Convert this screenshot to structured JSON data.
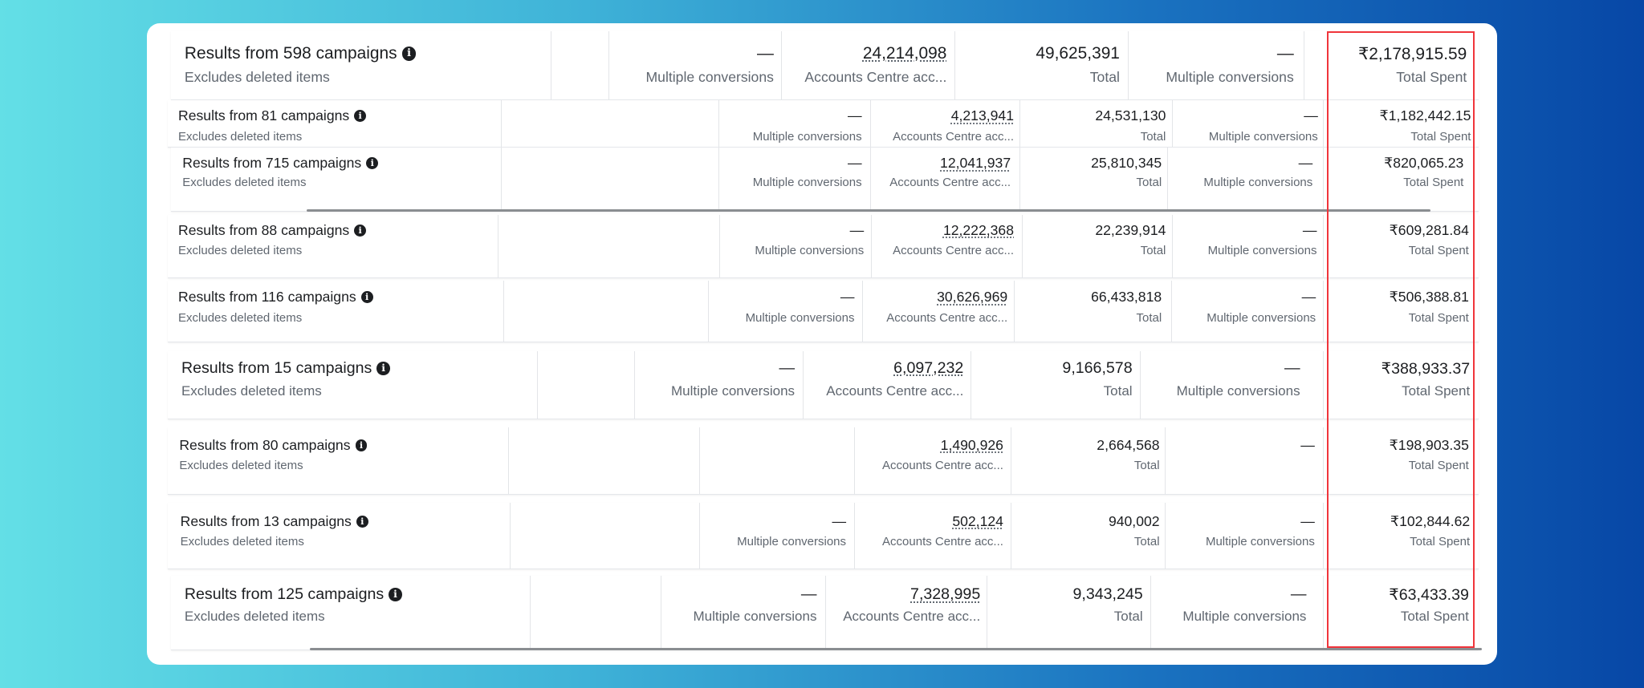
{
  "colors": {
    "highlight": "#f0353b",
    "text": "#1c1e21",
    "muted": "#606770"
  },
  "rows": [
    {
      "title": "Results from 598 campaigns",
      "note": "Excludes deleted items",
      "cells": [
        {
          "value": "—",
          "label": "Multiple conversions"
        },
        {
          "value": "24,214,098",
          "label": "Accounts Centre acc..."
        },
        {
          "value": "49,625,391",
          "label": "Total"
        },
        {
          "value": "—",
          "label": "Multiple conversions"
        },
        {
          "value": "₹2,178,915.59",
          "label": "Total Spent"
        }
      ]
    },
    {
      "title": "Results from 81 campaigns",
      "note": "Excludes deleted items",
      "cells": [
        {
          "value": "—",
          "label": "Multiple conversions"
        },
        {
          "value": "4,213,941",
          "label": "Accounts Centre acc..."
        },
        {
          "value": "24,531,130",
          "label": "Total"
        },
        {
          "value": "—",
          "label": "Multiple conversions"
        },
        {
          "value": "₹1,182,442.15",
          "label": "Total Spent"
        }
      ]
    },
    {
      "title": "Results from 715 campaigns",
      "note": "Excludes deleted items",
      "cells": [
        {
          "value": "—",
          "label": "Multiple conversions"
        },
        {
          "value": "12,041,937",
          "label": "Accounts Centre acc..."
        },
        {
          "value": "25,810,345",
          "label": "Total"
        },
        {
          "value": "—",
          "label": "Multiple conversions"
        },
        {
          "value": "₹820,065.23",
          "label": "Total Spent"
        }
      ]
    },
    {
      "title": "Results from 88 campaigns",
      "note": "Excludes deleted items",
      "cells": [
        {
          "value": "—",
          "label": "Multiple conversions"
        },
        {
          "value": "12,222,368",
          "label": "Accounts Centre acc..."
        },
        {
          "value": "22,239,914",
          "label": "Total"
        },
        {
          "value": "—",
          "label": "Multiple conversions"
        },
        {
          "value": "₹609,281.84",
          "label": "Total Spent"
        }
      ]
    },
    {
      "title": "Results from 116 campaigns",
      "note": "Excludes deleted items",
      "cells": [
        {
          "value": "—",
          "label": "Multiple conversions"
        },
        {
          "value": "30,626,969",
          "label": "Accounts Centre acc..."
        },
        {
          "value": "66,433,818",
          "label": "Total"
        },
        {
          "value": "—",
          "label": "Multiple conversions"
        },
        {
          "value": "₹506,388.81",
          "label": "Total Spent"
        }
      ]
    },
    {
      "title": "Results from 15 campaigns",
      "note": "Excludes deleted items",
      "cells": [
        {
          "value": "—",
          "label": "Multiple conversions"
        },
        {
          "value": "6,097,232",
          "label": "Accounts Centre acc..."
        },
        {
          "value": "9,166,578",
          "label": "Total"
        },
        {
          "value": "—",
          "label": "Multiple conversions"
        },
        {
          "value": "₹388,933.37",
          "label": "Total Spent"
        }
      ]
    },
    {
      "title": "Results from 80 campaigns",
      "note": "Excludes deleted items",
      "cells": [
        {
          "value": "",
          "label": ""
        },
        {
          "value": "1,490,926",
          "label": "Accounts Centre acc..."
        },
        {
          "value": "2,664,568",
          "label": "Total"
        },
        {
          "value": "—",
          "label": ""
        },
        {
          "value": "₹198,903.35",
          "label": "Total Spent"
        }
      ]
    },
    {
      "title": "Results from 13 campaigns",
      "note": "Excludes deleted items",
      "cells": [
        {
          "value": "—",
          "label": "Multiple conversions"
        },
        {
          "value": "502,124",
          "label": "Accounts Centre acc..."
        },
        {
          "value": "940,002",
          "label": "Total"
        },
        {
          "value": "—",
          "label": "Multiple conversions"
        },
        {
          "value": "₹102,844.62",
          "label": "Total Spent"
        }
      ]
    },
    {
      "title": "Results from 125 campaigns",
      "note": "Excludes deleted items",
      "cells": [
        {
          "value": "—",
          "label": "Multiple conversions"
        },
        {
          "value": "7,328,995",
          "label": "Accounts Centre acc..."
        },
        {
          "value": "9,343,245",
          "label": "Total"
        },
        {
          "value": "—",
          "label": "Multiple conversions"
        },
        {
          "value": "₹63,433.39",
          "label": "Total Spent"
        }
      ]
    }
  ]
}
